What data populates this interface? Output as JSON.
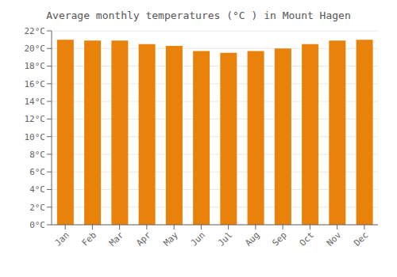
{
  "chart_data": {
    "type": "bar",
    "title": "Average monthly temperatures (°C ) in Mount Hagen",
    "categories": [
      "Jan",
      "Feb",
      "Mar",
      "Apr",
      "May",
      "Jun",
      "Jul",
      "Aug",
      "Sep",
      "Oct",
      "Nov",
      "Dec"
    ],
    "values": [
      21.0,
      20.9,
      20.9,
      20.5,
      20.3,
      19.7,
      19.5,
      19.7,
      20.0,
      20.5,
      20.9,
      21.0
    ],
    "color": "#E8820A",
    "ylim": [
      0,
      22
    ],
    "yticks": [
      {
        "value": 0,
        "label": "0°C"
      },
      {
        "value": 2,
        "label": "2°C"
      },
      {
        "value": 4,
        "label": "4°C"
      },
      {
        "value": 6,
        "label": "6°C"
      },
      {
        "value": 8,
        "label": "8°C"
      },
      {
        "value": 10,
        "label": "10°C"
      },
      {
        "value": 12,
        "label": "12°C"
      },
      {
        "value": 14,
        "label": "14°C"
      },
      {
        "value": 16,
        "label": "16°C"
      },
      {
        "value": 18,
        "label": "18°C"
      },
      {
        "value": 20,
        "label": "20°C"
      },
      {
        "value": 22,
        "label": "22°C"
      }
    ],
    "grid": true
  }
}
